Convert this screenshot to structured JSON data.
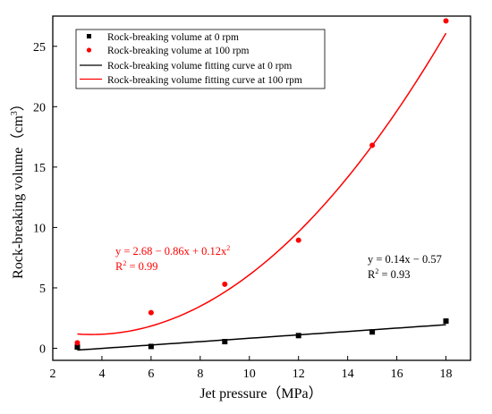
{
  "chart_data": {
    "type": "scatter",
    "xlabel": "Jet pressure（MPa）",
    "ylabel_main": "Rock-breaking volume（cm",
    "ylabel_sup": "3",
    "ylabel_close": "）",
    "xlim": [
      2,
      19
    ],
    "ylim": [
      -1,
      27.5
    ],
    "x_ticks": [
      2,
      4,
      6,
      8,
      10,
      12,
      14,
      16,
      18
    ],
    "y_ticks": [
      0,
      5,
      10,
      15,
      20,
      25
    ],
    "x_tick_labels": [
      "2",
      "4",
      "6",
      "8",
      "10",
      "12",
      "14",
      "16",
      "18"
    ],
    "y_tick_labels": [
      "0",
      "5",
      "10",
      "15",
      "20",
      "25"
    ],
    "series": [
      {
        "name": "Rock-breaking volume at 0 rpm",
        "kind": "points",
        "marker": "square",
        "color": "#000000",
        "x": [
          3,
          6,
          9,
          12,
          15,
          18
        ],
        "y": [
          0.1,
          0.15,
          0.55,
          1.05,
          1.35,
          2.25
        ]
      },
      {
        "name": "Rock-breaking volume at 100 rpm",
        "kind": "points",
        "marker": "circle",
        "color": "#ff0000",
        "x": [
          3,
          6,
          9,
          12,
          15,
          18
        ],
        "y": [
          0.45,
          2.95,
          5.3,
          8.95,
          16.8,
          27.1
        ]
      },
      {
        "name": "Rock-breaking volume fitting curve at 0 rpm",
        "kind": "fit",
        "color": "#000000",
        "coefficients": [
          -0.57,
          0.14,
          0
        ],
        "domain": [
          3,
          18
        ]
      },
      {
        "name": "Rock-breaking volume fitting curve at 100 rpm",
        "kind": "fit",
        "color": "#ff0000",
        "coefficients": [
          2.68,
          -0.86,
          0.12
        ],
        "domain": [
          3,
          18
        ]
      }
    ],
    "annotations": [
      {
        "color": "#ff0000",
        "eq_text": "y = 2.68 − 0.86x + 0.12x",
        "eq_sup": "2",
        "r_text": "R",
        "r_sup": "2",
        "r_value": " = 0.99"
      },
      {
        "color": "#000000",
        "eq_text": "y = 0.14x − 0.57",
        "eq_sup": "",
        "r_text": "R",
        "r_sup": "2",
        "r_value": " = 0.93"
      }
    ],
    "legend_position": "top-left"
  }
}
